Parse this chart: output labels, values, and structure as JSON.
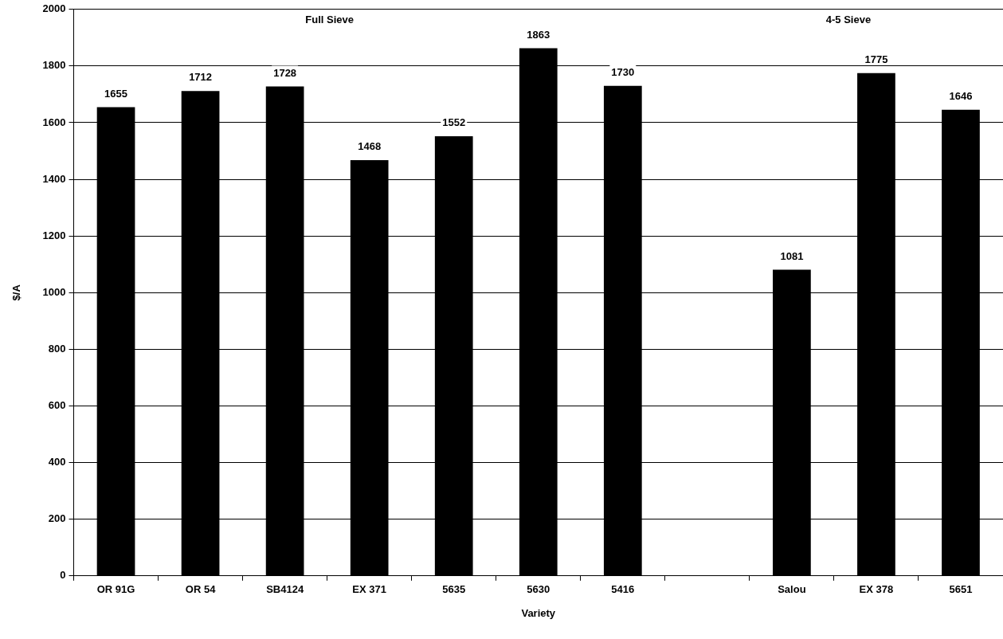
{
  "chart_data": {
    "type": "bar",
    "xlabel": "Variety",
    "ylabel": "$/A",
    "categories": [
      "OR 91G",
      "OR 54",
      "SB4124",
      "EX 371",
      "5635",
      "5630",
      "5416",
      null,
      "Salou",
      "EX 378",
      "5651"
    ],
    "values": [
      1655,
      1712,
      1728,
      1468,
      1552,
      1863,
      1730,
      null,
      1081,
      1775,
      1646
    ],
    "color": "#000000",
    "ylim": [
      0,
      2000
    ],
    "yticks": [
      0,
      200,
      400,
      600,
      800,
      1000,
      1200,
      1400,
      1600,
      1800,
      2000
    ],
    "grid": "y",
    "legend": false,
    "data_labels": true,
    "annotations": [
      "Full Sieve",
      "4-5 Sieve"
    ]
  }
}
